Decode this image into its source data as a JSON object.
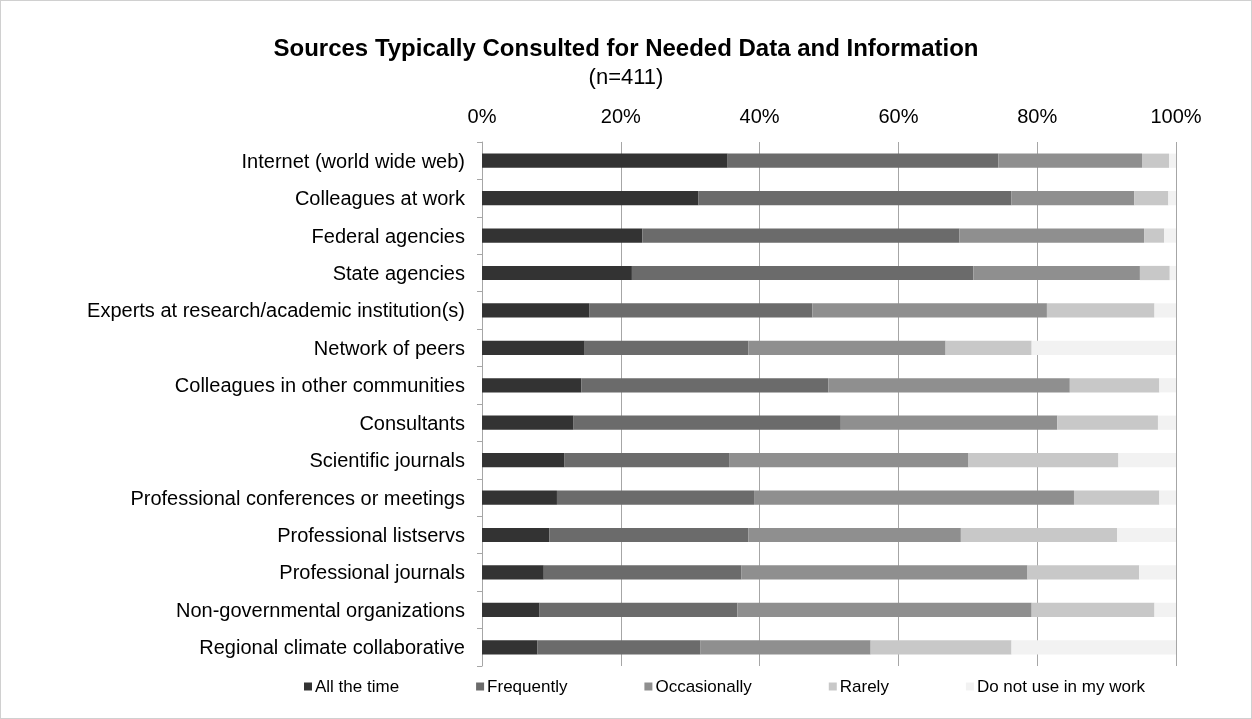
{
  "chart_data": {
    "type": "bar",
    "orientation": "horizontal",
    "stacked": true,
    "title": "Sources Typically Consulted for Needed Data and Information",
    "subtitle": "(n=411)",
    "categories": [
      "Internet (world wide web)",
      "Colleagues at work",
      "Federal agencies",
      "State agencies",
      "Experts at research/academic institution(s)",
      "Network of peers",
      "Colleagues in other communities",
      "Consultants",
      "Scientific journals",
      "Professional conferences or meetings",
      "Professional listservs",
      "Professional journals",
      "Non-governmental organizations",
      "Regional climate collaborative"
    ],
    "series": [
      {
        "name": "All the time",
        "color": "#333333",
        "values": [
          35.4,
          31.2,
          23.1,
          21.6,
          15.5,
          14.8,
          14.3,
          13.2,
          11.9,
          10.8,
          9.7,
          8.9,
          8.3,
          8.0
        ]
      },
      {
        "name": "Frequently",
        "color": "#6b6b6b",
        "values": [
          39.0,
          45.1,
          45.7,
          49.2,
          32.1,
          23.6,
          35.6,
          38.5,
          23.7,
          28.4,
          28.7,
          28.5,
          28.5,
          23.5
        ]
      },
      {
        "name": "Occasionally",
        "color": "#8f8f8f",
        "values": [
          20.7,
          17.7,
          26.6,
          24.0,
          33.8,
          28.4,
          34.8,
          31.2,
          34.5,
          46.1,
          30.6,
          41.2,
          42.4,
          24.5
        ]
      },
      {
        "name": "Rarely",
        "color": "#c8c8c8",
        "values": [
          3.9,
          4.9,
          2.9,
          4.3,
          15.5,
          12.4,
          12.9,
          14.5,
          21.6,
          12.3,
          22.5,
          16.1,
          17.7,
          20.3
        ]
      },
      {
        "name": "Do not use in my work",
        "color": "#f2f2f2",
        "values": [
          1.0,
          1.1,
          1.7,
          0.9,
          3.1,
          20.8,
          2.4,
          2.6,
          8.3,
          2.4,
          8.5,
          5.3,
          3.1,
          23.7
        ]
      }
    ],
    "xlim": [
      0,
      100
    ],
    "xticks": [
      {
        "value": 0,
        "label": "0%"
      },
      {
        "value": 20,
        "label": "20%"
      },
      {
        "value": 40,
        "label": "40%"
      },
      {
        "value": 60,
        "label": "60%"
      },
      {
        "value": 80,
        "label": "80%"
      },
      {
        "value": 100,
        "label": "100%"
      }
    ],
    "grid": "x",
    "legend": "bottom"
  }
}
